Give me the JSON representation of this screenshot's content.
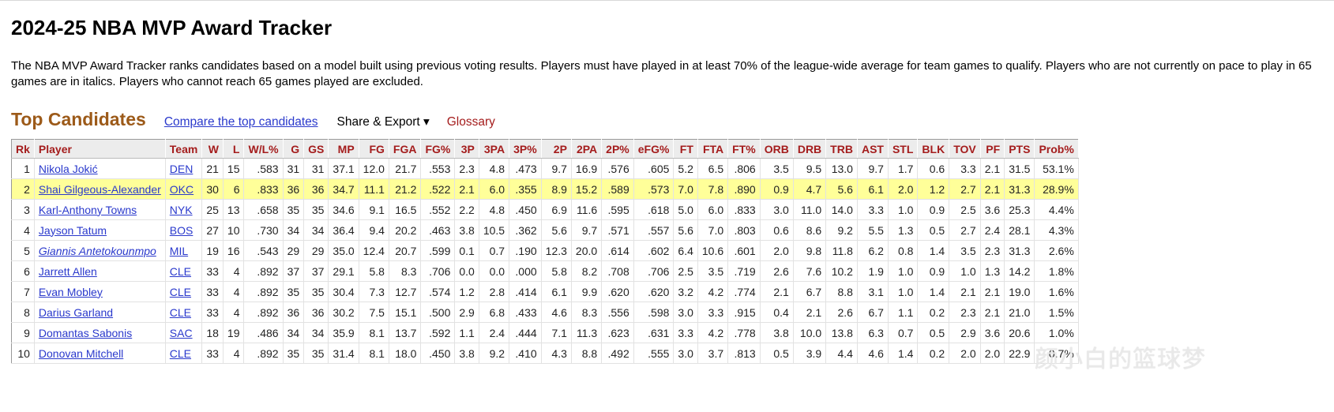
{
  "page": {
    "title": "2024-25 NBA MVP Award Tracker",
    "description": "The NBA MVP Award Tracker ranks candidates based on a model built using previous voting results. Players must have played in at least 70% of the league-wide average for team games to qualify. Players who are not currently on pace to play in 65 games are in italics. Players who cannot reach 65 games played are excluded."
  },
  "section": {
    "title": "Top Candidates",
    "compare_link": "Compare the top candidates",
    "share_export": "Share & Export ▾",
    "glossary": "Glossary"
  },
  "table": {
    "headers": [
      "Rk",
      "Player",
      "Team",
      "W",
      "L",
      "W/L%",
      "G",
      "GS",
      "MP",
      "FG",
      "FGA",
      "FG%",
      "3P",
      "3PA",
      "3P%",
      "2P",
      "2PA",
      "2P%",
      "eFG%",
      "FT",
      "FTA",
      "FT%",
      "ORB",
      "DRB",
      "TRB",
      "AST",
      "STL",
      "BLK",
      "TOV",
      "PF",
      "PTS",
      "Prob%"
    ],
    "highlight_row": 2,
    "rows": [
      [
        "1",
        "Nikola Jokić",
        "DEN",
        "21",
        "15",
        ".583",
        "31",
        "31",
        "37.1",
        "12.0",
        "21.7",
        ".553",
        "2.3",
        "4.8",
        ".473",
        "9.7",
        "16.9",
        ".576",
        ".605",
        "5.2",
        "6.5",
        ".806",
        "3.5",
        "9.5",
        "13.0",
        "9.7",
        "1.7",
        "0.6",
        "3.3",
        "2.1",
        "31.5",
        "53.1%"
      ],
      [
        "2",
        "Shai Gilgeous-Alexander",
        "OKC",
        "30",
        "6",
        ".833",
        "36",
        "36",
        "34.7",
        "11.1",
        "21.2",
        ".522",
        "2.1",
        "6.0",
        ".355",
        "8.9",
        "15.2",
        ".589",
        ".573",
        "7.0",
        "7.8",
        ".890",
        "0.9",
        "4.7",
        "5.6",
        "6.1",
        "2.0",
        "1.2",
        "2.7",
        "2.1",
        "31.3",
        "28.9%"
      ],
      [
        "3",
        "Karl-Anthony Towns",
        "NYK",
        "25",
        "13",
        ".658",
        "35",
        "35",
        "34.6",
        "9.1",
        "16.5",
        ".552",
        "2.2",
        "4.8",
        ".450",
        "6.9",
        "11.6",
        ".595",
        ".618",
        "5.0",
        "6.0",
        ".833",
        "3.0",
        "11.0",
        "14.0",
        "3.3",
        "1.0",
        "0.9",
        "2.5",
        "3.6",
        "25.3",
        "4.4%"
      ],
      [
        "4",
        "Jayson Tatum",
        "BOS",
        "27",
        "10",
        ".730",
        "34",
        "34",
        "36.4",
        "9.4",
        "20.2",
        ".463",
        "3.8",
        "10.5",
        ".362",
        "5.6",
        "9.7",
        ".571",
        ".557",
        "5.6",
        "7.0",
        ".803",
        "0.6",
        "8.6",
        "9.2",
        "5.5",
        "1.3",
        "0.5",
        "2.7",
        "2.4",
        "28.1",
        "4.3%"
      ],
      [
        "5",
        "Giannis Antetokounmpo",
        "MIL",
        "19",
        "16",
        ".543",
        "29",
        "29",
        "35.0",
        "12.4",
        "20.7",
        ".599",
        "0.1",
        "0.7",
        ".190",
        "12.3",
        "20.0",
        ".614",
        ".602",
        "6.4",
        "10.6",
        ".601",
        "2.0",
        "9.8",
        "11.8",
        "6.2",
        "0.8",
        "1.4",
        "3.5",
        "2.3",
        "31.3",
        "2.6%"
      ],
      [
        "6",
        "Jarrett Allen",
        "CLE",
        "33",
        "4",
        ".892",
        "37",
        "37",
        "29.1",
        "5.8",
        "8.3",
        ".706",
        "0.0",
        "0.0",
        ".000",
        "5.8",
        "8.2",
        ".708",
        ".706",
        "2.5",
        "3.5",
        ".719",
        "2.6",
        "7.6",
        "10.2",
        "1.9",
        "1.0",
        "0.9",
        "1.0",
        "1.3",
        "14.2",
        "1.8%"
      ],
      [
        "7",
        "Evan Mobley",
        "CLE",
        "33",
        "4",
        ".892",
        "35",
        "35",
        "30.4",
        "7.3",
        "12.7",
        ".574",
        "1.2",
        "2.8",
        ".414",
        "6.1",
        "9.9",
        ".620",
        ".620",
        "3.2",
        "4.2",
        ".774",
        "2.1",
        "6.7",
        "8.8",
        "3.1",
        "1.0",
        "1.4",
        "2.1",
        "2.1",
        "19.0",
        "1.6%"
      ],
      [
        "8",
        "Darius Garland",
        "CLE",
        "33",
        "4",
        ".892",
        "36",
        "36",
        "30.2",
        "7.5",
        "15.1",
        ".500",
        "2.9",
        "6.8",
        ".433",
        "4.6",
        "8.3",
        ".556",
        ".598",
        "3.0",
        "3.3",
        ".915",
        "0.4",
        "2.1",
        "2.6",
        "6.7",
        "1.1",
        "0.2",
        "2.3",
        "2.1",
        "21.0",
        "1.5%"
      ],
      [
        "9",
        "Domantas Sabonis",
        "SAC",
        "18",
        "19",
        ".486",
        "34",
        "34",
        "35.9",
        "8.1",
        "13.7",
        ".592",
        "1.1",
        "2.4",
        ".444",
        "7.1",
        "11.3",
        ".623",
        ".631",
        "3.3",
        "4.2",
        ".778",
        "3.8",
        "10.0",
        "13.8",
        "6.3",
        "0.7",
        "0.5",
        "2.9",
        "3.6",
        "20.6",
        "1.0%"
      ],
      [
        "10",
        "Donovan Mitchell",
        "CLE",
        "33",
        "4",
        ".892",
        "35",
        "35",
        "31.4",
        "8.1",
        "18.0",
        ".450",
        "3.8",
        "9.2",
        ".410",
        "4.3",
        "8.8",
        ".492",
        ".555",
        "3.0",
        "3.7",
        ".813",
        "0.5",
        "3.9",
        "4.4",
        "4.6",
        "1.4",
        "0.2",
        "2.0",
        "2.0",
        "22.9",
        "0.7%"
      ]
    ],
    "italic_rows": [
      5
    ]
  },
  "watermark": "颜小白的篮球梦"
}
